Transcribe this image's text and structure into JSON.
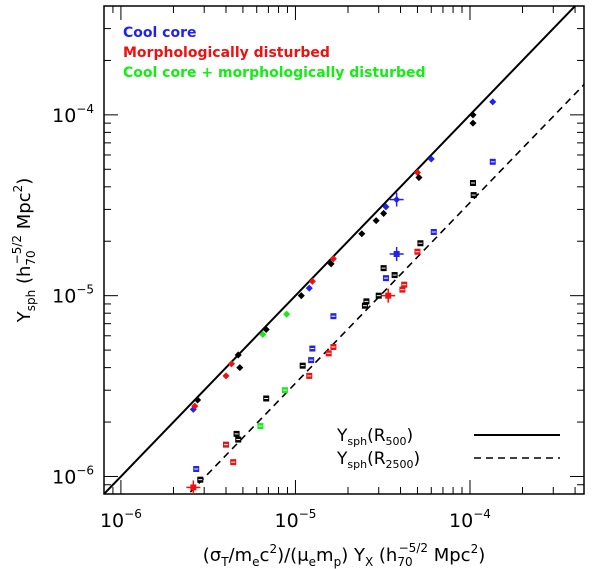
{
  "chart_data": {
    "type": "scatter",
    "xscale": "log",
    "yscale": "log",
    "xlim": [
      8e-07,
      0.00045
    ],
    "ylim": [
      8e-07,
      0.0004
    ],
    "xlabel_parts": {
      "sigma": "(σ",
      "sigma_sub": "T",
      "slash1": "/m",
      "me_sub": "e",
      "csq": "c",
      "csq_sup": "2",
      "mid": ")/(μ",
      "mu_sub": "e",
      "mp": "m",
      "mp_sub": "p",
      "yx": ") Y",
      "yx_sub": "X",
      "unit_open": "(h",
      "unit_sub": "70",
      "unit_sup": "−5/2",
      "unit_mpc": " Mpc",
      "unit_mpc_sup": "2",
      "unit_close": ")"
    },
    "ylabel_parts": {
      "y": "Y",
      "y_sub": "sph",
      "unit_open": "(h",
      "unit_sub": "70",
      "unit_sup": "−5/2",
      "unit_mpc": " Mpc",
      "unit_mpc_sup": "2",
      "unit_close": ")"
    },
    "xticks": [
      {
        "value": 1e-06,
        "base": "10",
        "exp": "−6"
      },
      {
        "value": 1e-05,
        "base": "10",
        "exp": "−5"
      },
      {
        "value": 0.0001,
        "base": "10",
        "exp": "−4"
      }
    ],
    "yticks": [
      {
        "value": 1e-06,
        "base": "10",
        "exp": "−6"
      },
      {
        "value": 1e-05,
        "base": "10",
        "exp": "−5"
      },
      {
        "value": 0.0001,
        "base": "10",
        "exp": "−4"
      }
    ],
    "category_legend": [
      {
        "label": "Cool core",
        "color": "#2222ee"
      },
      {
        "label": "Morphologically disturbed",
        "color": "#ee1111"
      },
      {
        "label": "Cool core + morphologically disturbed",
        "color": "#11ee11"
      }
    ],
    "line_legend": [
      {
        "main": "Y",
        "sub": "sph",
        "paren": "(R",
        "rsub": "500",
        "close": ")",
        "style": "solid"
      },
      {
        "main": "Y",
        "sub": "sph",
        "paren": "(R",
        "rsub": "2500",
        "close": ")",
        "style": "dashed"
      }
    ],
    "fit_lines": [
      {
        "name": "R500",
        "style": "solid",
        "points": [
          [
            8e-07,
            8e-07
          ],
          [
            0.00045,
            0.00045
          ]
        ]
      },
      {
        "name": "R2500",
        "style": "dashed",
        "points": [
          [
            2.5e-06,
            8.2e-07
          ],
          [
            0.00045,
            0.000147
          ]
        ]
      }
    ],
    "series": [
      {
        "name": "R500",
        "marker": "filled",
        "points": [
          {
            "x": 2.6e-06,
            "y": 2.35e-06,
            "c": "blue"
          },
          {
            "x": 2.65e-06,
            "y": 2.45e-06,
            "c": "red"
          },
          {
            "x": 2.75e-06,
            "y": 2.65e-06,
            "c": "black"
          },
          {
            "x": 4e-06,
            "y": 3.6e-06,
            "c": "red"
          },
          {
            "x": 4.3e-06,
            "y": 4.2e-06,
            "c": "red"
          },
          {
            "x": 4.7e-06,
            "y": 4.7e-06,
            "c": "black"
          },
          {
            "x": 4.8e-06,
            "y": 4e-06,
            "c": "black"
          },
          {
            "x": 6.5e-06,
            "y": 6.1e-06,
            "c": "green"
          },
          {
            "x": 6.8e-06,
            "y": 6.5e-06,
            "c": "black"
          },
          {
            "x": 8.9e-06,
            "y": 7.9e-06,
            "c": "green"
          },
          {
            "x": 1.08e-05,
            "y": 1e-05,
            "c": "black"
          },
          {
            "x": 1.2e-05,
            "y": 1.1e-05,
            "c": "blue"
          },
          {
            "x": 1.25e-05,
            "y": 1.2e-05,
            "c": "red"
          },
          {
            "x": 1.6e-05,
            "y": 1.5e-05,
            "c": "black"
          },
          {
            "x": 1.65e-05,
            "y": 1.6e-05,
            "c": "red"
          },
          {
            "x": 2.4e-05,
            "y": 2.2e-05,
            "c": "black"
          },
          {
            "x": 2.9e-05,
            "y": 2.6e-05,
            "c": "black"
          },
          {
            "x": 3.2e-05,
            "y": 2.85e-05,
            "c": "black"
          },
          {
            "x": 3.3e-05,
            "y": 3.1e-05,
            "c": "blue"
          },
          {
            "x": 3.8e-05,
            "y": 3.4e-05,
            "c": "blue",
            "cross": true
          },
          {
            "x": 5e-05,
            "y": 4.8e-05,
            "c": "red"
          },
          {
            "x": 5.1e-05,
            "y": 4.5e-05,
            "c": "black"
          },
          {
            "x": 6e-05,
            "y": 5.7e-05,
            "c": "blue"
          },
          {
            "x": 0.000104,
            "y": 0.0001,
            "c": "black"
          },
          {
            "x": 0.000104,
            "y": 9e-05,
            "c": "black"
          },
          {
            "x": 0.000135,
            "y": 0.000118,
            "c": "blue"
          }
        ]
      },
      {
        "name": "R2500",
        "marker": "open",
        "points": [
          {
            "x": 2.6e-06,
            "y": 8.7e-07,
            "c": "red",
            "cross": true
          },
          {
            "x": 2.7e-06,
            "y": 1.1e-06,
            "c": "blue"
          },
          {
            "x": 2.85e-06,
            "y": 9.6e-07,
            "c": "black"
          },
          {
            "x": 4e-06,
            "y": 1.5e-06,
            "c": "red"
          },
          {
            "x": 4.4e-06,
            "y": 1.2e-06,
            "c": "red"
          },
          {
            "x": 4.6e-06,
            "y": 1.72e-06,
            "c": "black"
          },
          {
            "x": 4.7e-06,
            "y": 1.6e-06,
            "c": "black"
          },
          {
            "x": 6.3e-06,
            "y": 1.9e-06,
            "c": "green"
          },
          {
            "x": 6.8e-06,
            "y": 2.7e-06,
            "c": "black"
          },
          {
            "x": 8.7e-06,
            "y": 3e-06,
            "c": "green"
          },
          {
            "x": 1.1e-05,
            "y": 4.1e-06,
            "c": "black"
          },
          {
            "x": 1.2e-05,
            "y": 3.6e-06,
            "c": "red"
          },
          {
            "x": 1.23e-05,
            "y": 4.4e-06,
            "c": "blue"
          },
          {
            "x": 1.25e-05,
            "y": 5.1e-06,
            "c": "blue"
          },
          {
            "x": 1.55e-05,
            "y": 4.8e-06,
            "c": "red"
          },
          {
            "x": 1.65e-05,
            "y": 5.2e-06,
            "c": "red"
          },
          {
            "x": 1.65e-05,
            "y": 7.7e-06,
            "c": "blue"
          },
          {
            "x": 2.5e-05,
            "y": 8.8e-06,
            "c": "black"
          },
          {
            "x": 2.55e-05,
            "y": 9.3e-06,
            "c": "black"
          },
          {
            "x": 3e-05,
            "y": 1e-05,
            "c": "black"
          },
          {
            "x": 3.2e-05,
            "y": 1.42e-05,
            "c": "black"
          },
          {
            "x": 3.3e-05,
            "y": 1.25e-05,
            "c": "blue"
          },
          {
            "x": 3.4e-05,
            "y": 1e-05,
            "c": "red",
            "cross": true
          },
          {
            "x": 3.7e-05,
            "y": 1.3e-05,
            "c": "black"
          },
          {
            "x": 3.8e-05,
            "y": 1.7e-05,
            "c": "blue",
            "cross": true
          },
          {
            "x": 4.1e-05,
            "y": 1.08e-05,
            "c": "red"
          },
          {
            "x": 4.2e-05,
            "y": 1.15e-05,
            "c": "red"
          },
          {
            "x": 5e-05,
            "y": 1.75e-05,
            "c": "red"
          },
          {
            "x": 5.2e-05,
            "y": 1.95e-05,
            "c": "black"
          },
          {
            "x": 6.2e-05,
            "y": 2.25e-05,
            "c": "blue"
          },
          {
            "x": 0.000104,
            "y": 4.2e-05,
            "c": "black"
          },
          {
            "x": 0.000105,
            "y": 3.6e-05,
            "c": "black"
          },
          {
            "x": 0.000135,
            "y": 5.5e-05,
            "c": "blue"
          }
        ]
      }
    ]
  }
}
